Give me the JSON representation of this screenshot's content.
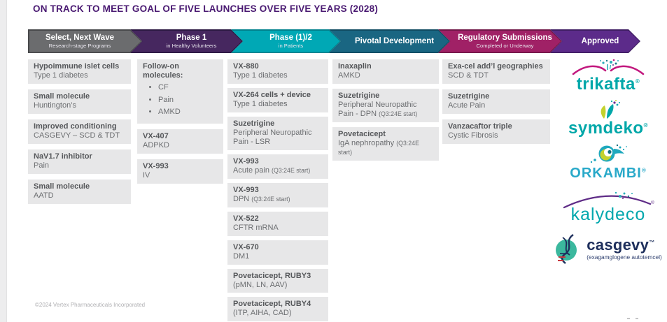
{
  "title": "ON TRACK TO MEET GOAL OF FIVE LAUNCHES OVER FIVE YEARS (2028)",
  "footer": "©2024 Vertex Pharmaceuticals Incorporated",
  "title_color": "#4a1a72",
  "stages": [
    {
      "label": "Select, Next Wave",
      "sublabel": "Research-stage Programs",
      "fill": "#6b6c6e",
      "border": "#48494b"
    },
    {
      "label": "Phase 1",
      "sublabel": "in Healthy Volunteers",
      "fill": "#46275f",
      "border": "#2b1841"
    },
    {
      "label": "Phase (1)/2",
      "sublabel": "in Patients",
      "fill": "#00a8b5",
      "border": "#00808c"
    },
    {
      "label": "Pivotal Development",
      "sublabel": "",
      "fill": "#1a6682",
      "border": "#104b61"
    },
    {
      "label": "Regulatory Submissions",
      "sublabel": "Completed or Underway",
      "fill": "#a02166",
      "border": "#701747"
    },
    {
      "label": "Approved",
      "sublabel": "",
      "fill": "#5c2b8a",
      "border": "#3f1d62"
    }
  ],
  "columns": [
    {
      "stage": "select-next-wave",
      "cards": [
        {
          "title": "Hypoimmune islet cells",
          "subtitle": "Type 1 diabetes"
        },
        {
          "title": "Small molecule",
          "subtitle": "Huntington’s"
        },
        {
          "title": "Improved conditioning",
          "subtitle": "CASGEVY – SCD & TDT"
        },
        {
          "title": "NaV1.7 inhibitor",
          "subtitle": "Pain"
        },
        {
          "title": "Small molecule",
          "subtitle": "AATD"
        }
      ]
    },
    {
      "stage": "phase-1",
      "cards": [
        {
          "title": "Follow-on molecules:",
          "bullets": [
            "CF",
            "Pain",
            "AMKD"
          ]
        },
        {
          "title": "VX-407",
          "subtitle": "ADPKD"
        },
        {
          "title": "VX-993",
          "subtitle": "IV"
        }
      ]
    },
    {
      "stage": "phase-1-2",
      "cards": [
        {
          "title": "VX-880",
          "subtitle": "Type 1 diabetes"
        },
        {
          "title": "VX-264 cells + device",
          "subtitle": "Type 1 diabetes"
        },
        {
          "title": "Suzetrigine",
          "subtitle": "Peripheral Neuropathic Pain - LSR"
        },
        {
          "title": "VX-993",
          "subtitle": "Acute pain",
          "note": "(Q3:24E start)"
        },
        {
          "title": "VX-993",
          "subtitle": "DPN",
          "note": "(Q3:24E start)"
        },
        {
          "title": "VX-522",
          "subtitle": "CFTR mRNA"
        },
        {
          "title": "VX-670",
          "subtitle": "DM1"
        },
        {
          "title": "Povetacicept, RUBY3",
          "subtitle": "(pMN, LN, AAV)"
        },
        {
          "title": "Povetacicept, RUBY4",
          "subtitle": "(ITP, AIHA, CAD)"
        }
      ]
    },
    {
      "stage": "pivotal-development",
      "cards": [
        {
          "title": "Inaxaplin",
          "subtitle": "AMKD"
        },
        {
          "title": "Suzetrigine",
          "subtitle": "Peripheral Neuropathic Pain - DPN",
          "note": "(Q3:24E start)"
        },
        {
          "title": "Povetacicept",
          "subtitle": "IgA nephropathy",
          "note": "(Q3:24E start)"
        }
      ]
    },
    {
      "stage": "regulatory-submissions",
      "cards": [
        {
          "title": "Exa-cel add’l geographies",
          "subtitle": "SCD & TDT"
        },
        {
          "title": "Suzetrigine",
          "subtitle": "Acute Pain"
        },
        {
          "title": "Vanzacaftor triple",
          "subtitle": "Cystic Fibrosis"
        }
      ]
    }
  ],
  "approved": [
    {
      "name": "trikafta",
      "mark": "®",
      "color": "#00a7a9"
    },
    {
      "name": "symdeko",
      "mark": "®",
      "color": "#00a7a9"
    },
    {
      "name": "ORKAMBI",
      "mark": "®",
      "color": "#29a9c9"
    },
    {
      "name": "kalydeco",
      "mark": "",
      "color": "#00a7ad"
    },
    {
      "name": "casgevy",
      "mark": "™",
      "color": "#1e2f5c",
      "subtext": "(exagamglogene autotemcel)"
    }
  ]
}
